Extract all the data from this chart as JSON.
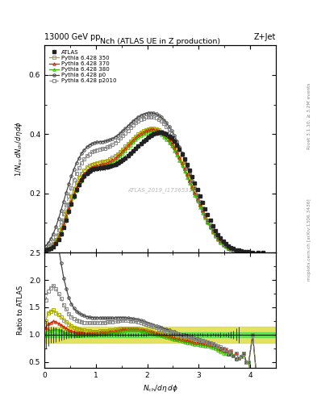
{
  "title_top": "13000 GeV pp",
  "title_right": "Z+Jet",
  "plot_title": "Nch (ATLAS UE in Z production)",
  "xlabel": "N_{ch}/d\\eta d\\phi",
  "ylabel_main": "1/N_{ev} dN_{ch}/d\\eta d\\phi",
  "ylabel_ratio": "Ratio to ATLAS",
  "watermark": "ATLAS_2019_I1736531",
  "right_label": "Rivet 3.1.10, ≥ 3.2M events",
  "right_label2": "mcplots.cern.ch [arXiv:1306.3436]",
  "x": [
    0.025,
    0.075,
    0.125,
    0.175,
    0.225,
    0.275,
    0.325,
    0.375,
    0.425,
    0.475,
    0.525,
    0.575,
    0.625,
    0.675,
    0.725,
    0.775,
    0.825,
    0.875,
    0.925,
    0.975,
    1.025,
    1.075,
    1.125,
    1.175,
    1.225,
    1.275,
    1.325,
    1.375,
    1.425,
    1.475,
    1.525,
    1.575,
    1.625,
    1.675,
    1.725,
    1.775,
    1.825,
    1.875,
    1.925,
    1.975,
    2.025,
    2.075,
    2.125,
    2.175,
    2.225,
    2.275,
    2.325,
    2.375,
    2.425,
    2.475,
    2.525,
    2.575,
    2.625,
    2.675,
    2.725,
    2.775,
    2.825,
    2.875,
    2.925,
    2.975,
    3.025,
    3.075,
    3.125,
    3.175,
    3.225,
    3.275,
    3.325,
    3.375,
    3.425,
    3.475,
    3.525,
    3.575,
    3.625,
    3.675,
    3.725,
    3.775,
    3.825,
    3.875,
    3.925,
    3.975,
    4.05,
    4.15,
    4.25
  ],
  "atlas_y": [
    0.008,
    0.01,
    0.014,
    0.02,
    0.03,
    0.044,
    0.062,
    0.085,
    0.11,
    0.138,
    0.165,
    0.19,
    0.212,
    0.23,
    0.245,
    0.258,
    0.268,
    0.275,
    0.28,
    0.283,
    0.285,
    0.286,
    0.287,
    0.288,
    0.29,
    0.292,
    0.295,
    0.298,
    0.302,
    0.307,
    0.313,
    0.32,
    0.328,
    0.336,
    0.344,
    0.352,
    0.36,
    0.368,
    0.376,
    0.383,
    0.39,
    0.396,
    0.4,
    0.404,
    0.406,
    0.406,
    0.404,
    0.4,
    0.394,
    0.386,
    0.376,
    0.364,
    0.35,
    0.334,
    0.316,
    0.297,
    0.277,
    0.256,
    0.234,
    0.212,
    0.19,
    0.168,
    0.147,
    0.127,
    0.108,
    0.091,
    0.075,
    0.061,
    0.049,
    0.039,
    0.03,
    0.023,
    0.017,
    0.013,
    0.009,
    0.007,
    0.005,
    0.003,
    0.002,
    0.002,
    0.001,
    0.001,
    0.0
  ],
  "atlas_err": [
    0.002,
    0.002,
    0.002,
    0.003,
    0.004,
    0.005,
    0.006,
    0.007,
    0.008,
    0.009,
    0.01,
    0.01,
    0.01,
    0.01,
    0.01,
    0.01,
    0.01,
    0.01,
    0.01,
    0.01,
    0.01,
    0.01,
    0.009,
    0.009,
    0.009,
    0.009,
    0.009,
    0.009,
    0.009,
    0.009,
    0.009,
    0.009,
    0.009,
    0.009,
    0.009,
    0.009,
    0.009,
    0.009,
    0.009,
    0.009,
    0.009,
    0.009,
    0.009,
    0.009,
    0.009,
    0.009,
    0.009,
    0.009,
    0.009,
    0.009,
    0.009,
    0.008,
    0.008,
    0.008,
    0.007,
    0.007,
    0.006,
    0.006,
    0.005,
    0.005,
    0.004,
    0.004,
    0.003,
    0.003,
    0.003,
    0.002,
    0.002,
    0.002,
    0.002,
    0.001,
    0.001,
    0.001,
    0.001,
    0.001,
    0.001,
    0.001,
    0.0,
    0.0,
    0.0,
    0.0,
    0.0,
    0.0,
    0.0
  ],
  "p350_y": [
    0.01,
    0.014,
    0.02,
    0.029,
    0.042,
    0.06,
    0.082,
    0.108,
    0.136,
    0.164,
    0.191,
    0.215,
    0.236,
    0.254,
    0.268,
    0.279,
    0.288,
    0.294,
    0.298,
    0.301,
    0.303,
    0.305,
    0.307,
    0.309,
    0.312,
    0.316,
    0.321,
    0.327,
    0.334,
    0.342,
    0.35,
    0.359,
    0.368,
    0.377,
    0.385,
    0.393,
    0.4,
    0.406,
    0.411,
    0.415,
    0.418,
    0.42,
    0.42,
    0.418,
    0.415,
    0.41,
    0.403,
    0.394,
    0.383,
    0.37,
    0.356,
    0.34,
    0.323,
    0.304,
    0.285,
    0.265,
    0.244,
    0.223,
    0.202,
    0.181,
    0.161,
    0.141,
    0.122,
    0.104,
    0.087,
    0.072,
    0.058,
    0.046,
    0.036,
    0.028,
    0.021,
    0.015,
    0.011,
    0.008,
    0.005,
    0.004,
    0.003,
    0.002,
    0.001,
    0.001,
    0.001,
    0.0,
    0.0
  ],
  "p370_y": [
    0.009,
    0.012,
    0.017,
    0.025,
    0.037,
    0.053,
    0.073,
    0.097,
    0.123,
    0.15,
    0.176,
    0.2,
    0.221,
    0.239,
    0.254,
    0.266,
    0.276,
    0.283,
    0.288,
    0.292,
    0.295,
    0.297,
    0.299,
    0.301,
    0.304,
    0.308,
    0.313,
    0.319,
    0.326,
    0.334,
    0.343,
    0.352,
    0.362,
    0.371,
    0.38,
    0.388,
    0.396,
    0.402,
    0.407,
    0.411,
    0.414,
    0.416,
    0.416,
    0.415,
    0.412,
    0.407,
    0.401,
    0.392,
    0.382,
    0.369,
    0.355,
    0.339,
    0.322,
    0.303,
    0.284,
    0.264,
    0.243,
    0.222,
    0.201,
    0.181,
    0.161,
    0.141,
    0.123,
    0.105,
    0.088,
    0.073,
    0.059,
    0.047,
    0.037,
    0.029,
    0.022,
    0.016,
    0.012,
    0.008,
    0.006,
    0.004,
    0.003,
    0.002,
    0.001,
    0.001,
    0.0,
    0.0,
    0.0
  ],
  "p380_y": [
    0.008,
    0.011,
    0.015,
    0.022,
    0.033,
    0.048,
    0.067,
    0.089,
    0.114,
    0.14,
    0.165,
    0.189,
    0.21,
    0.228,
    0.244,
    0.256,
    0.266,
    0.274,
    0.28,
    0.284,
    0.287,
    0.289,
    0.291,
    0.294,
    0.297,
    0.301,
    0.306,
    0.312,
    0.319,
    0.327,
    0.336,
    0.345,
    0.355,
    0.364,
    0.373,
    0.381,
    0.389,
    0.395,
    0.4,
    0.404,
    0.407,
    0.408,
    0.408,
    0.406,
    0.403,
    0.398,
    0.391,
    0.382,
    0.371,
    0.359,
    0.345,
    0.329,
    0.312,
    0.294,
    0.275,
    0.255,
    0.235,
    0.215,
    0.194,
    0.174,
    0.154,
    0.135,
    0.117,
    0.1,
    0.084,
    0.069,
    0.056,
    0.044,
    0.034,
    0.026,
    0.02,
    0.015,
    0.011,
    0.008,
    0.005,
    0.004,
    0.003,
    0.002,
    0.001,
    0.001,
    0.0,
    0.0,
    0.0
  ],
  "p0_y": [
    0.022,
    0.032,
    0.046,
    0.064,
    0.087,
    0.114,
    0.143,
    0.173,
    0.203,
    0.231,
    0.258,
    0.282,
    0.303,
    0.32,
    0.335,
    0.347,
    0.356,
    0.363,
    0.368,
    0.371,
    0.373,
    0.374,
    0.375,
    0.376,
    0.378,
    0.381,
    0.385,
    0.39,
    0.396,
    0.403,
    0.411,
    0.419,
    0.428,
    0.436,
    0.444,
    0.451,
    0.458,
    0.463,
    0.467,
    0.47,
    0.472,
    0.472,
    0.471,
    0.468,
    0.463,
    0.457,
    0.448,
    0.438,
    0.426,
    0.411,
    0.395,
    0.377,
    0.357,
    0.336,
    0.314,
    0.291,
    0.267,
    0.243,
    0.219,
    0.195,
    0.172,
    0.15,
    0.129,
    0.11,
    0.092,
    0.076,
    0.061,
    0.048,
    0.037,
    0.028,
    0.021,
    0.015,
    0.011,
    0.008,
    0.005,
    0.004,
    0.003,
    0.002,
    0.001,
    0.001,
    0.001,
    0.0,
    0.0
  ],
  "p2010_y": [
    0.013,
    0.018,
    0.026,
    0.038,
    0.055,
    0.077,
    0.103,
    0.131,
    0.161,
    0.191,
    0.219,
    0.245,
    0.268,
    0.287,
    0.303,
    0.316,
    0.326,
    0.334,
    0.34,
    0.344,
    0.347,
    0.349,
    0.351,
    0.353,
    0.356,
    0.36,
    0.365,
    0.371,
    0.378,
    0.386,
    0.395,
    0.404,
    0.413,
    0.422,
    0.43,
    0.438,
    0.445,
    0.45,
    0.454,
    0.457,
    0.459,
    0.459,
    0.458,
    0.455,
    0.45,
    0.444,
    0.436,
    0.426,
    0.414,
    0.4,
    0.385,
    0.368,
    0.349,
    0.329,
    0.308,
    0.286,
    0.263,
    0.24,
    0.217,
    0.194,
    0.171,
    0.15,
    0.129,
    0.11,
    0.092,
    0.076,
    0.061,
    0.048,
    0.038,
    0.029,
    0.022,
    0.016,
    0.012,
    0.008,
    0.006,
    0.004,
    0.003,
    0.002,
    0.001,
    0.001,
    0.001,
    0.0,
    0.0
  ],
  "color_atlas": "#222222",
  "color_p350": "#aaaa00",
  "color_p370": "#cc2200",
  "color_p380": "#33bb00",
  "color_p0": "#444444",
  "color_p2010": "#888888",
  "band_green_inner": "#55dd55",
  "band_yellow_outer": "#dddd44",
  "xlim": [
    0,
    4.5
  ],
  "ylim_main": [
    0,
    0.7
  ],
  "ylim_ratio": [
    0.4,
    2.5
  ],
  "yticks_main": [
    0.2,
    0.4,
    0.6
  ],
  "yticks_ratio": [
    0.5,
    1.0,
    1.5,
    2.0,
    2.5
  ]
}
